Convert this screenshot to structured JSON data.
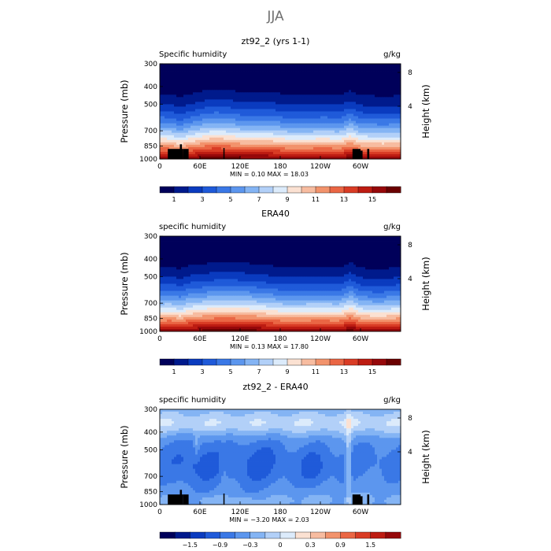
{
  "figure": {
    "title": "JJA"
  },
  "chart_data": [
    {
      "type": "heatmap",
      "title": "zt92_2 (yrs 1-1)",
      "left_label": "Specific humidity",
      "units": "g/kg",
      "ylabel": "Pressure (mb)",
      "ylabel_right": "Height (km)",
      "x_ticks": [
        "0",
        "60E",
        "120E",
        "180",
        "120W",
        "60W"
      ],
      "y_ticks": [
        "300",
        "400",
        "500",
        "700",
        "850",
        "1000"
      ],
      "y_right_ticks": [
        "8",
        "4"
      ],
      "y_values_mb": [
        300,
        400,
        500,
        700,
        850,
        1000
      ],
      "xlim": [
        0,
        360
      ],
      "log_pressure_axis": true,
      "stats": "MIN =     0.10   MAX =   18.03",
      "min": 0.1,
      "max": 18.03,
      "colorbar": {
        "labels": [
          "1",
          "3",
          "5",
          "7",
          "9",
          "11",
          "13",
          "15"
        ],
        "levels": [
          0,
          1,
          2,
          3,
          4,
          5,
          6,
          7,
          8,
          9,
          10,
          11,
          12,
          13,
          14,
          15,
          16
        ],
        "colors": [
          "#00005a",
          "#001a8c",
          "#0a3bbf",
          "#1f5ad9",
          "#3a78e6",
          "#5c96ee",
          "#84b4f4",
          "#b2d0f8",
          "#dcebfb",
          "#fbe1d2",
          "#f7bca0",
          "#f2936c",
          "#ea6644",
          "#d93c25",
          "#bd1c12",
          "#96080a",
          "#6a0000"
        ]
      },
      "topography": true
    },
    {
      "type": "heatmap",
      "title": "ERA40",
      "left_label": "specific humidity",
      "units": "g/kg",
      "ylabel": "Pressure (mb)",
      "ylabel_right": "Height (km)",
      "x_ticks": [
        "0",
        "60E",
        "120E",
        "180",
        "120W",
        "60W"
      ],
      "y_ticks": [
        "300",
        "400",
        "500",
        "700",
        "850",
        "1000"
      ],
      "y_right_ticks": [
        "8",
        "4"
      ],
      "y_values_mb": [
        300,
        400,
        500,
        700,
        850,
        1000
      ],
      "xlim": [
        0,
        360
      ],
      "log_pressure_axis": true,
      "stats": "MIN =     0.13   MAX =   17.80",
      "min": 0.13,
      "max": 17.8,
      "colorbar": {
        "labels": [
          "1",
          "3",
          "5",
          "7",
          "9",
          "11",
          "13",
          "15"
        ],
        "levels": [
          0,
          1,
          2,
          3,
          4,
          5,
          6,
          7,
          8,
          9,
          10,
          11,
          12,
          13,
          14,
          15,
          16
        ],
        "colors": [
          "#00005a",
          "#001a8c",
          "#0a3bbf",
          "#1f5ad9",
          "#3a78e6",
          "#5c96ee",
          "#84b4f4",
          "#b2d0f8",
          "#dcebfb",
          "#fbe1d2",
          "#f7bca0",
          "#f2936c",
          "#ea6644",
          "#d93c25",
          "#bd1c12",
          "#96080a",
          "#6a0000"
        ]
      },
      "topography": false
    },
    {
      "type": "heatmap",
      "title": "zt92_2 - ERA40",
      "left_label": "specific humidity",
      "units": "g/kg",
      "ylabel": "Pressure (mb)",
      "ylabel_right": "Height (km)",
      "x_ticks": [
        "0",
        "60E",
        "120E",
        "180",
        "120W",
        "60W"
      ],
      "y_ticks": [
        "300",
        "400",
        "500",
        "700",
        "850",
        "1000"
      ],
      "y_right_ticks": [
        "8",
        "4"
      ],
      "y_values_mb": [
        300,
        400,
        500,
        700,
        850,
        1000
      ],
      "xlim": [
        0,
        360
      ],
      "log_pressure_axis": true,
      "stats": "MIN =   −3.20   MAX =     2.03",
      "min": -3.2,
      "max": 2.03,
      "colorbar": {
        "labels": [
          "−1.5",
          "−0.9",
          "−0.3",
          "0",
          "0.3",
          "0.9",
          "1.5"
        ],
        "colors": [
          "#00005a",
          "#001a8c",
          "#0a3bbf",
          "#1f5ad9",
          "#3a78e6",
          "#5c96ee",
          "#84b4f4",
          "#b2d0f8",
          "#dcebfb",
          "#fbe1d2",
          "#f7bca0",
          "#f2936c",
          "#ea6644",
          "#d93c25",
          "#bd1c12",
          "#96080a"
        ]
      },
      "topography": true
    }
  ]
}
